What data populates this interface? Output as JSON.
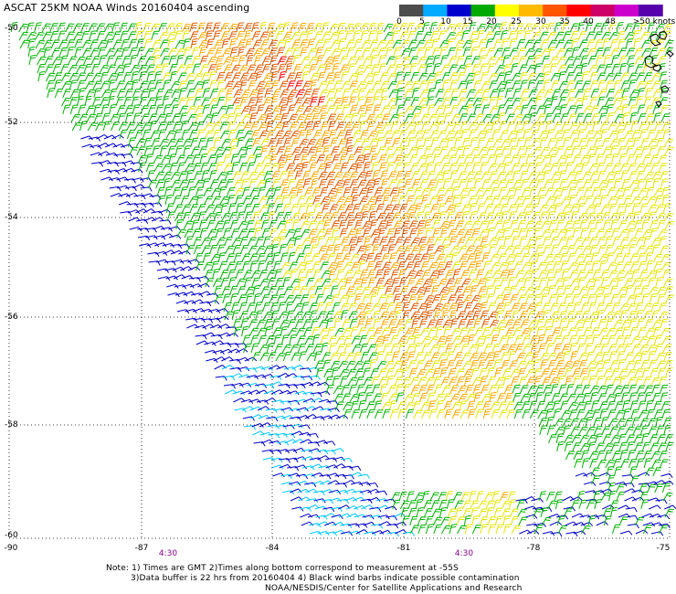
{
  "title": "ASCAT 25KM NOAA Winds 20160404 ascending",
  "colorbar": {
    "ticks": [
      "0",
      "5",
      "10",
      "15",
      "20",
      "25",
      "30",
      "35",
      "40",
      "48",
      ">50 knots"
    ],
    "colors": [
      "#4d4d4d",
      "#00aaff",
      "#0000cc",
      "#00aa00",
      "#ffff00",
      "#ffbb00",
      "#ff5500",
      "#ff0000",
      "#cc0066",
      "#cc00cc",
      "#5500aa"
    ]
  },
  "axes": {
    "lat_labels": [
      "-50",
      "-52",
      "-54",
      "-56",
      "-58",
      "-60"
    ],
    "lon_labels": [
      "-90",
      "-87",
      "-84",
      "-81",
      "-78",
      "-75"
    ],
    "time_labels": [
      "4:30",
      "4:30"
    ],
    "lon_range": [
      -90,
      -75
    ],
    "lat_range": [
      -50,
      -60
    ],
    "grid": "dotted"
  },
  "notes": {
    "line1": "Note: 1) Times are GMT 2)Times along bottom correspond to measurement at -55S",
    "line2": "3)Data buffer is 22 hrs from 20160404 4) Black wind barbs indicate possible contamination",
    "line3": "NOAA/NESDIS/Center for Satellite Applications and Research"
  },
  "wind_field": {
    "speed_colors": {
      "calm": "#00c8ff",
      "light": "#0000c8",
      "moderate": "#00b400",
      "fresh": "#e6e600",
      "strong": "#ffaa00",
      "gale": "#e05a00",
      "storm": "#ff0000"
    }
  }
}
